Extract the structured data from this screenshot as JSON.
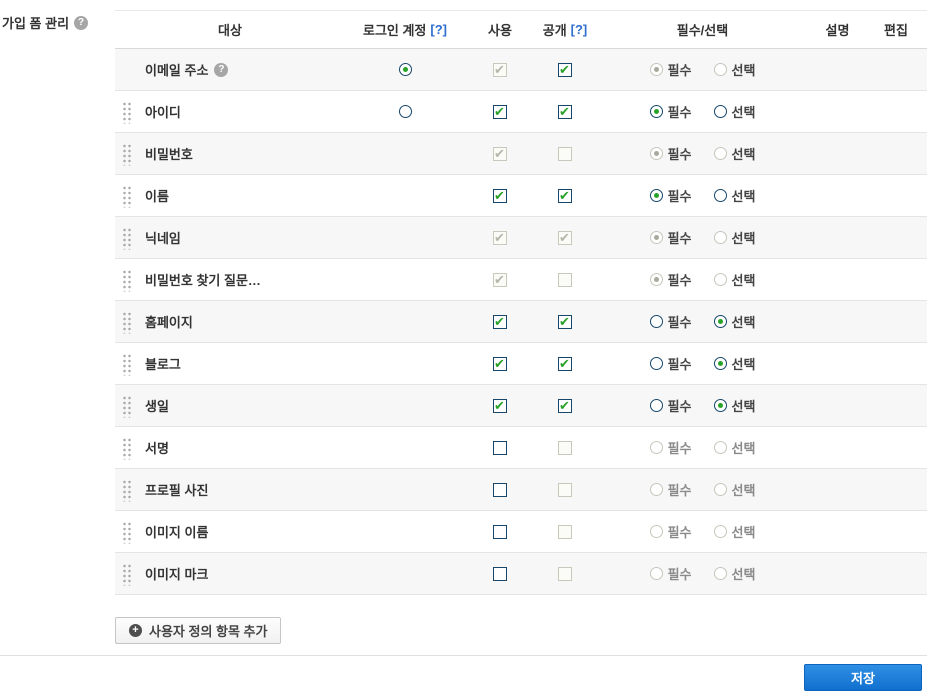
{
  "page": {
    "title": "가입 폼 관리",
    "title_help": "?"
  },
  "table": {
    "headers": {
      "target": "대상",
      "login": "로그인 계정",
      "login_help": "[?]",
      "use": "사용",
      "public": "공개",
      "public_help": "[?]",
      "required": "필수/선택",
      "description": "설명",
      "edit": "편집"
    },
    "option_labels": {
      "required": "필수",
      "optional": "선택"
    },
    "row_help": "?",
    "rows": [
      {
        "label": "이메일 주소",
        "help": true,
        "drag": false,
        "login": "selected",
        "use": {
          "checked": true,
          "disabled": true
        },
        "public": {
          "checked": true,
          "disabled": false
        },
        "required": {
          "selected": "required",
          "disabled": true
        }
      },
      {
        "label": "아이디",
        "help": false,
        "drag": true,
        "login": "unselected",
        "use": {
          "checked": true,
          "disabled": false
        },
        "public": {
          "checked": true,
          "disabled": false
        },
        "required": {
          "selected": "required",
          "disabled": false
        }
      },
      {
        "label": "비밀번호",
        "help": false,
        "drag": true,
        "login": null,
        "use": {
          "checked": true,
          "disabled": true
        },
        "public": {
          "checked": false,
          "disabled": true
        },
        "required": {
          "selected": "required",
          "disabled": true
        }
      },
      {
        "label": "이름",
        "help": false,
        "drag": true,
        "login": null,
        "use": {
          "checked": true,
          "disabled": false
        },
        "public": {
          "checked": true,
          "disabled": false
        },
        "required": {
          "selected": "required",
          "disabled": false
        }
      },
      {
        "label": "닉네임",
        "help": false,
        "drag": true,
        "login": null,
        "use": {
          "checked": true,
          "disabled": true
        },
        "public": {
          "checked": true,
          "disabled": true
        },
        "required": {
          "selected": "required",
          "disabled": true
        }
      },
      {
        "label": "비밀번호 찾기 질문…",
        "help": false,
        "drag": true,
        "login": null,
        "use": {
          "checked": true,
          "disabled": true
        },
        "public": {
          "checked": false,
          "disabled": true
        },
        "required": {
          "selected": "required",
          "disabled": true
        }
      },
      {
        "label": "홈페이지",
        "help": false,
        "drag": true,
        "login": null,
        "use": {
          "checked": true,
          "disabled": false
        },
        "public": {
          "checked": true,
          "disabled": false
        },
        "required": {
          "selected": "optional",
          "disabled": false
        }
      },
      {
        "label": "블로그",
        "help": false,
        "drag": true,
        "login": null,
        "use": {
          "checked": true,
          "disabled": false
        },
        "public": {
          "checked": true,
          "disabled": false
        },
        "required": {
          "selected": "optional",
          "disabled": false
        }
      },
      {
        "label": "생일",
        "help": false,
        "drag": true,
        "login": null,
        "use": {
          "checked": true,
          "disabled": false
        },
        "public": {
          "checked": true,
          "disabled": false
        },
        "required": {
          "selected": "optional",
          "disabled": false
        }
      },
      {
        "label": "서명",
        "help": false,
        "drag": true,
        "login": null,
        "use": {
          "checked": false,
          "disabled": false
        },
        "public": {
          "checked": false,
          "disabled": true
        },
        "required": {
          "selected": null,
          "disabled": true
        }
      },
      {
        "label": "프로필 사진",
        "help": false,
        "drag": true,
        "login": null,
        "use": {
          "checked": false,
          "disabled": false
        },
        "public": {
          "checked": false,
          "disabled": true
        },
        "required": {
          "selected": null,
          "disabled": true
        }
      },
      {
        "label": "이미지 이름",
        "help": false,
        "drag": true,
        "login": null,
        "use": {
          "checked": false,
          "disabled": false
        },
        "public": {
          "checked": false,
          "disabled": true
        },
        "required": {
          "selected": null,
          "disabled": true
        }
      },
      {
        "label": "이미지 마크",
        "help": false,
        "drag": true,
        "login": null,
        "use": {
          "checked": false,
          "disabled": false
        },
        "public": {
          "checked": false,
          "disabled": true
        },
        "required": {
          "selected": null,
          "disabled": true
        }
      }
    ]
  },
  "footer": {
    "add_button_icon": "+",
    "add_button_label": "사용자 정의 항목 추가",
    "save_button_label": "저장"
  },
  "colors": {
    "accent_blue": "#1170cf",
    "check_green": "#28a228",
    "link_blue": "#2e6ed0",
    "row_alt_bg": "#f7f7f7"
  }
}
